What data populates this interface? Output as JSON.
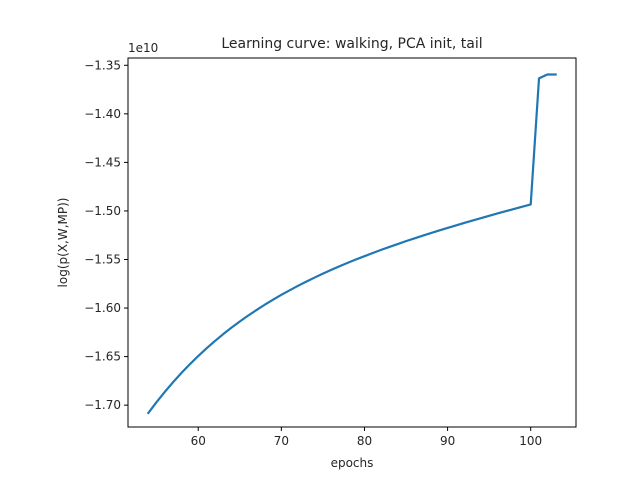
{
  "chart_data": {
    "type": "line",
    "title": "Learning curve: walking, PCA init, tail",
    "xlabel": "epochs",
    "ylabel": "log(p(X,W,MP))",
    "y_offset_label": "1e10",
    "xlim": [
      51.55,
      105.45
    ],
    "ylim": [
      -1.7225,
      -1.3425
    ],
    "x_ticks": [
      60,
      70,
      80,
      90,
      100
    ],
    "x_tick_labels": [
      "60",
      "70",
      "80",
      "90",
      "100"
    ],
    "y_ticks": [
      -1.7,
      -1.65,
      -1.6,
      -1.55,
      -1.5,
      -1.45,
      -1.4,
      -1.35
    ],
    "y_tick_labels": [
      "−1.70",
      "−1.65",
      "−1.60",
      "−1.55",
      "−1.50",
      "−1.45",
      "−1.40",
      "−1.35"
    ],
    "grid": false,
    "line_color": "#1f77b4",
    "series": [
      {
        "x": [
          54,
          55,
          56,
          57,
          58,
          59,
          60,
          61,
          62,
          63,
          64,
          65,
          66,
          67,
          68,
          69,
          70,
          71,
          72,
          73,
          74,
          75,
          76,
          77,
          78,
          79,
          80,
          81,
          82,
          83,
          84,
          85,
          86,
          87,
          88,
          89,
          90,
          91,
          92,
          93,
          94,
          95,
          96,
          97,
          98,
          99,
          100,
          101,
          102,
          103
        ],
        "y": [
          -1.708,
          -1.6967,
          -1.6861,
          -1.6761,
          -1.6666,
          -1.6578,
          -1.6494,
          -1.6415,
          -1.634,
          -1.6269,
          -1.6202,
          -1.6139,
          -1.6078,
          -1.6021,
          -1.5966,
          -1.5914,
          -1.5864,
          -1.5817,
          -1.5771,
          -1.5728,
          -1.5686,
          -1.5646,
          -1.5607,
          -1.557,
          -1.5534,
          -1.5499,
          -1.5466,
          -1.5433,
          -1.5401,
          -1.5371,
          -1.5341,
          -1.5311,
          -1.5283,
          -1.5255,
          -1.5228,
          -1.5201,
          -1.5175,
          -1.5149,
          -1.5124,
          -1.5099,
          -1.5075,
          -1.505,
          -1.5026,
          -1.5003,
          -1.4979,
          -1.4956,
          -1.4933,
          -1.3635,
          -1.3595,
          -1.3595
        ]
      }
    ]
  }
}
